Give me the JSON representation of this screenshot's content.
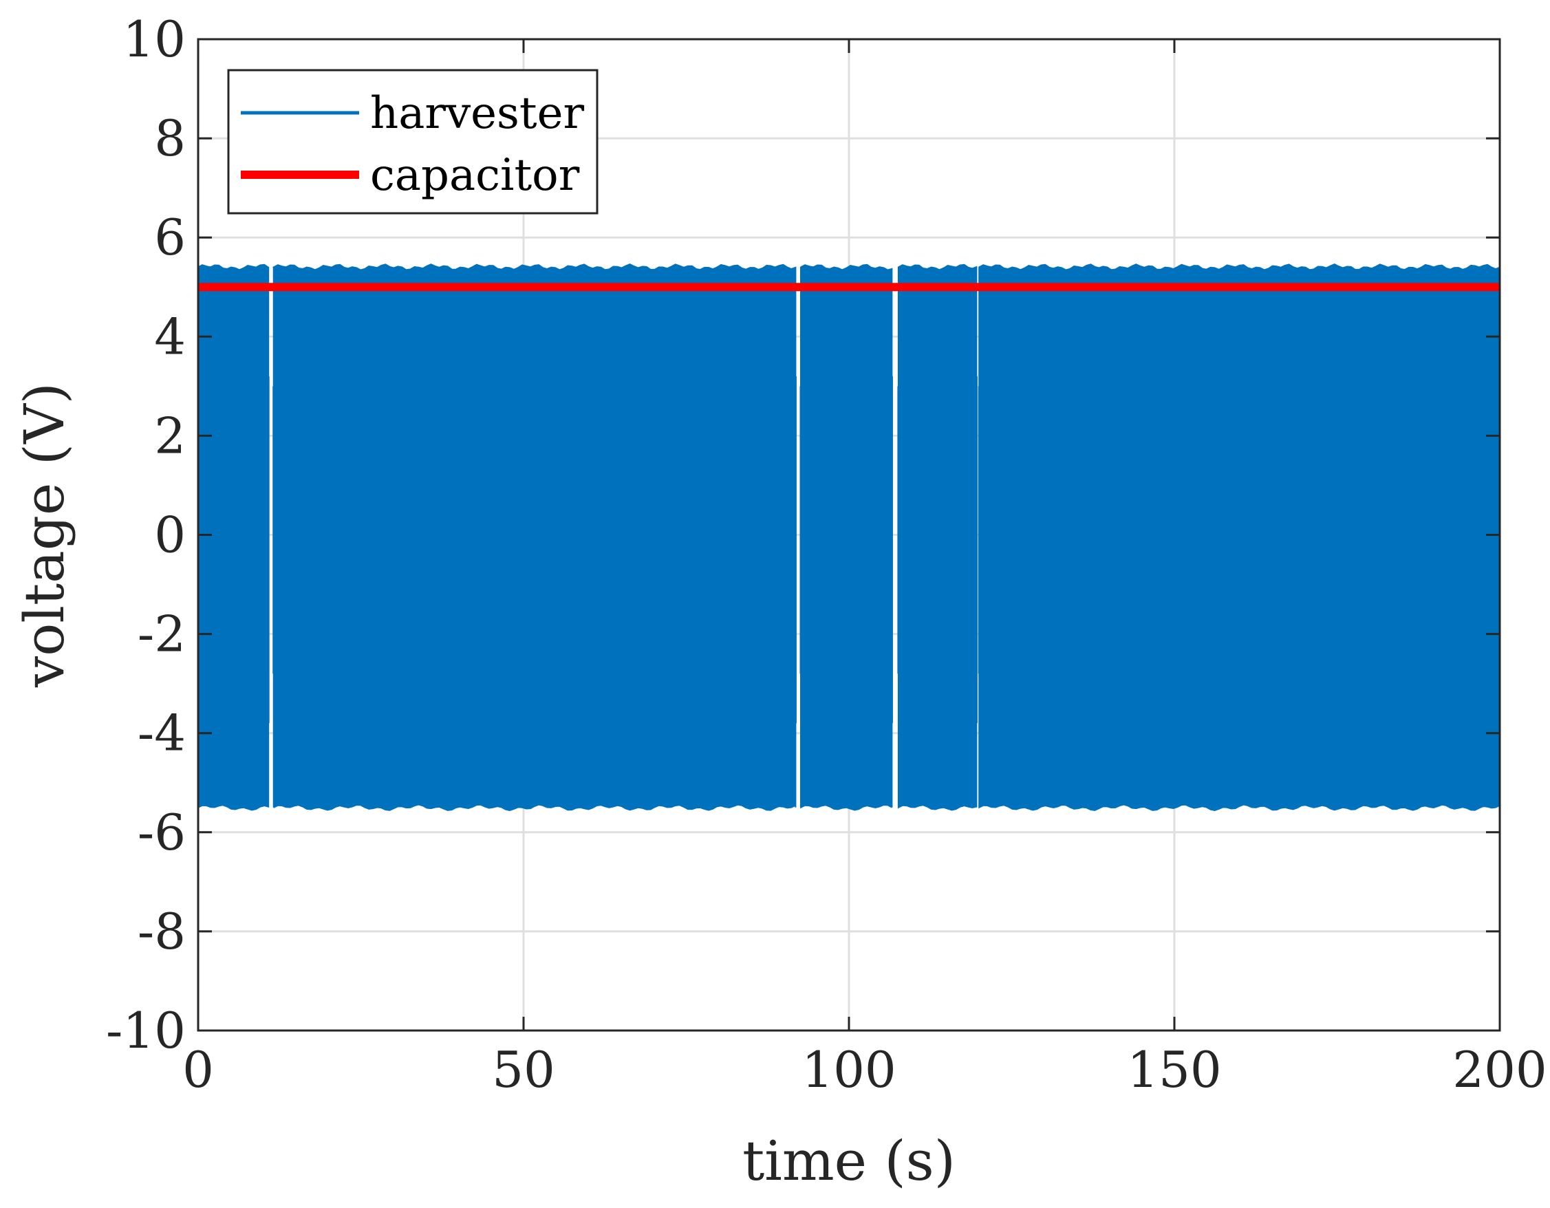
{
  "chart_data": {
    "type": "line",
    "title": "",
    "xlabel": "time (s)",
    "ylabel": "voltage (V)",
    "xlim": [
      0,
      200
    ],
    "ylim": [
      -10,
      10
    ],
    "xticks": [
      0,
      50,
      100,
      150,
      200
    ],
    "yticks": [
      -10,
      -8,
      -6,
      -4,
      -2,
      0,
      2,
      4,
      6,
      8,
      10
    ],
    "xtick_labels": [
      "0",
      "50",
      "100",
      "150",
      "200"
    ],
    "ytick_labels": [
      "-10",
      "-8",
      "-6",
      "-4",
      "-2",
      "0",
      "2",
      "4",
      "6",
      "8",
      "10"
    ],
    "grid": true,
    "legend_position": "top-left",
    "series": [
      {
        "name": "harvester",
        "color": "#0072BD",
        "style": "dense oscillation band",
        "amplitude_envelope": {
          "upper": 5.4,
          "lower": -5.5
        },
        "gaps": [
          {
            "start": 10.8,
            "end": 11.6
          },
          {
            "start": 91.8,
            "end": 92.6
          },
          {
            "start": 106.6,
            "end": 107.6
          },
          {
            "start": 119.6,
            "end": 120.0
          }
        ]
      },
      {
        "name": "capacitor",
        "color": "#FF0000",
        "x": [
          0,
          200
        ],
        "y": [
          5.0,
          5.0
        ]
      }
    ]
  }
}
